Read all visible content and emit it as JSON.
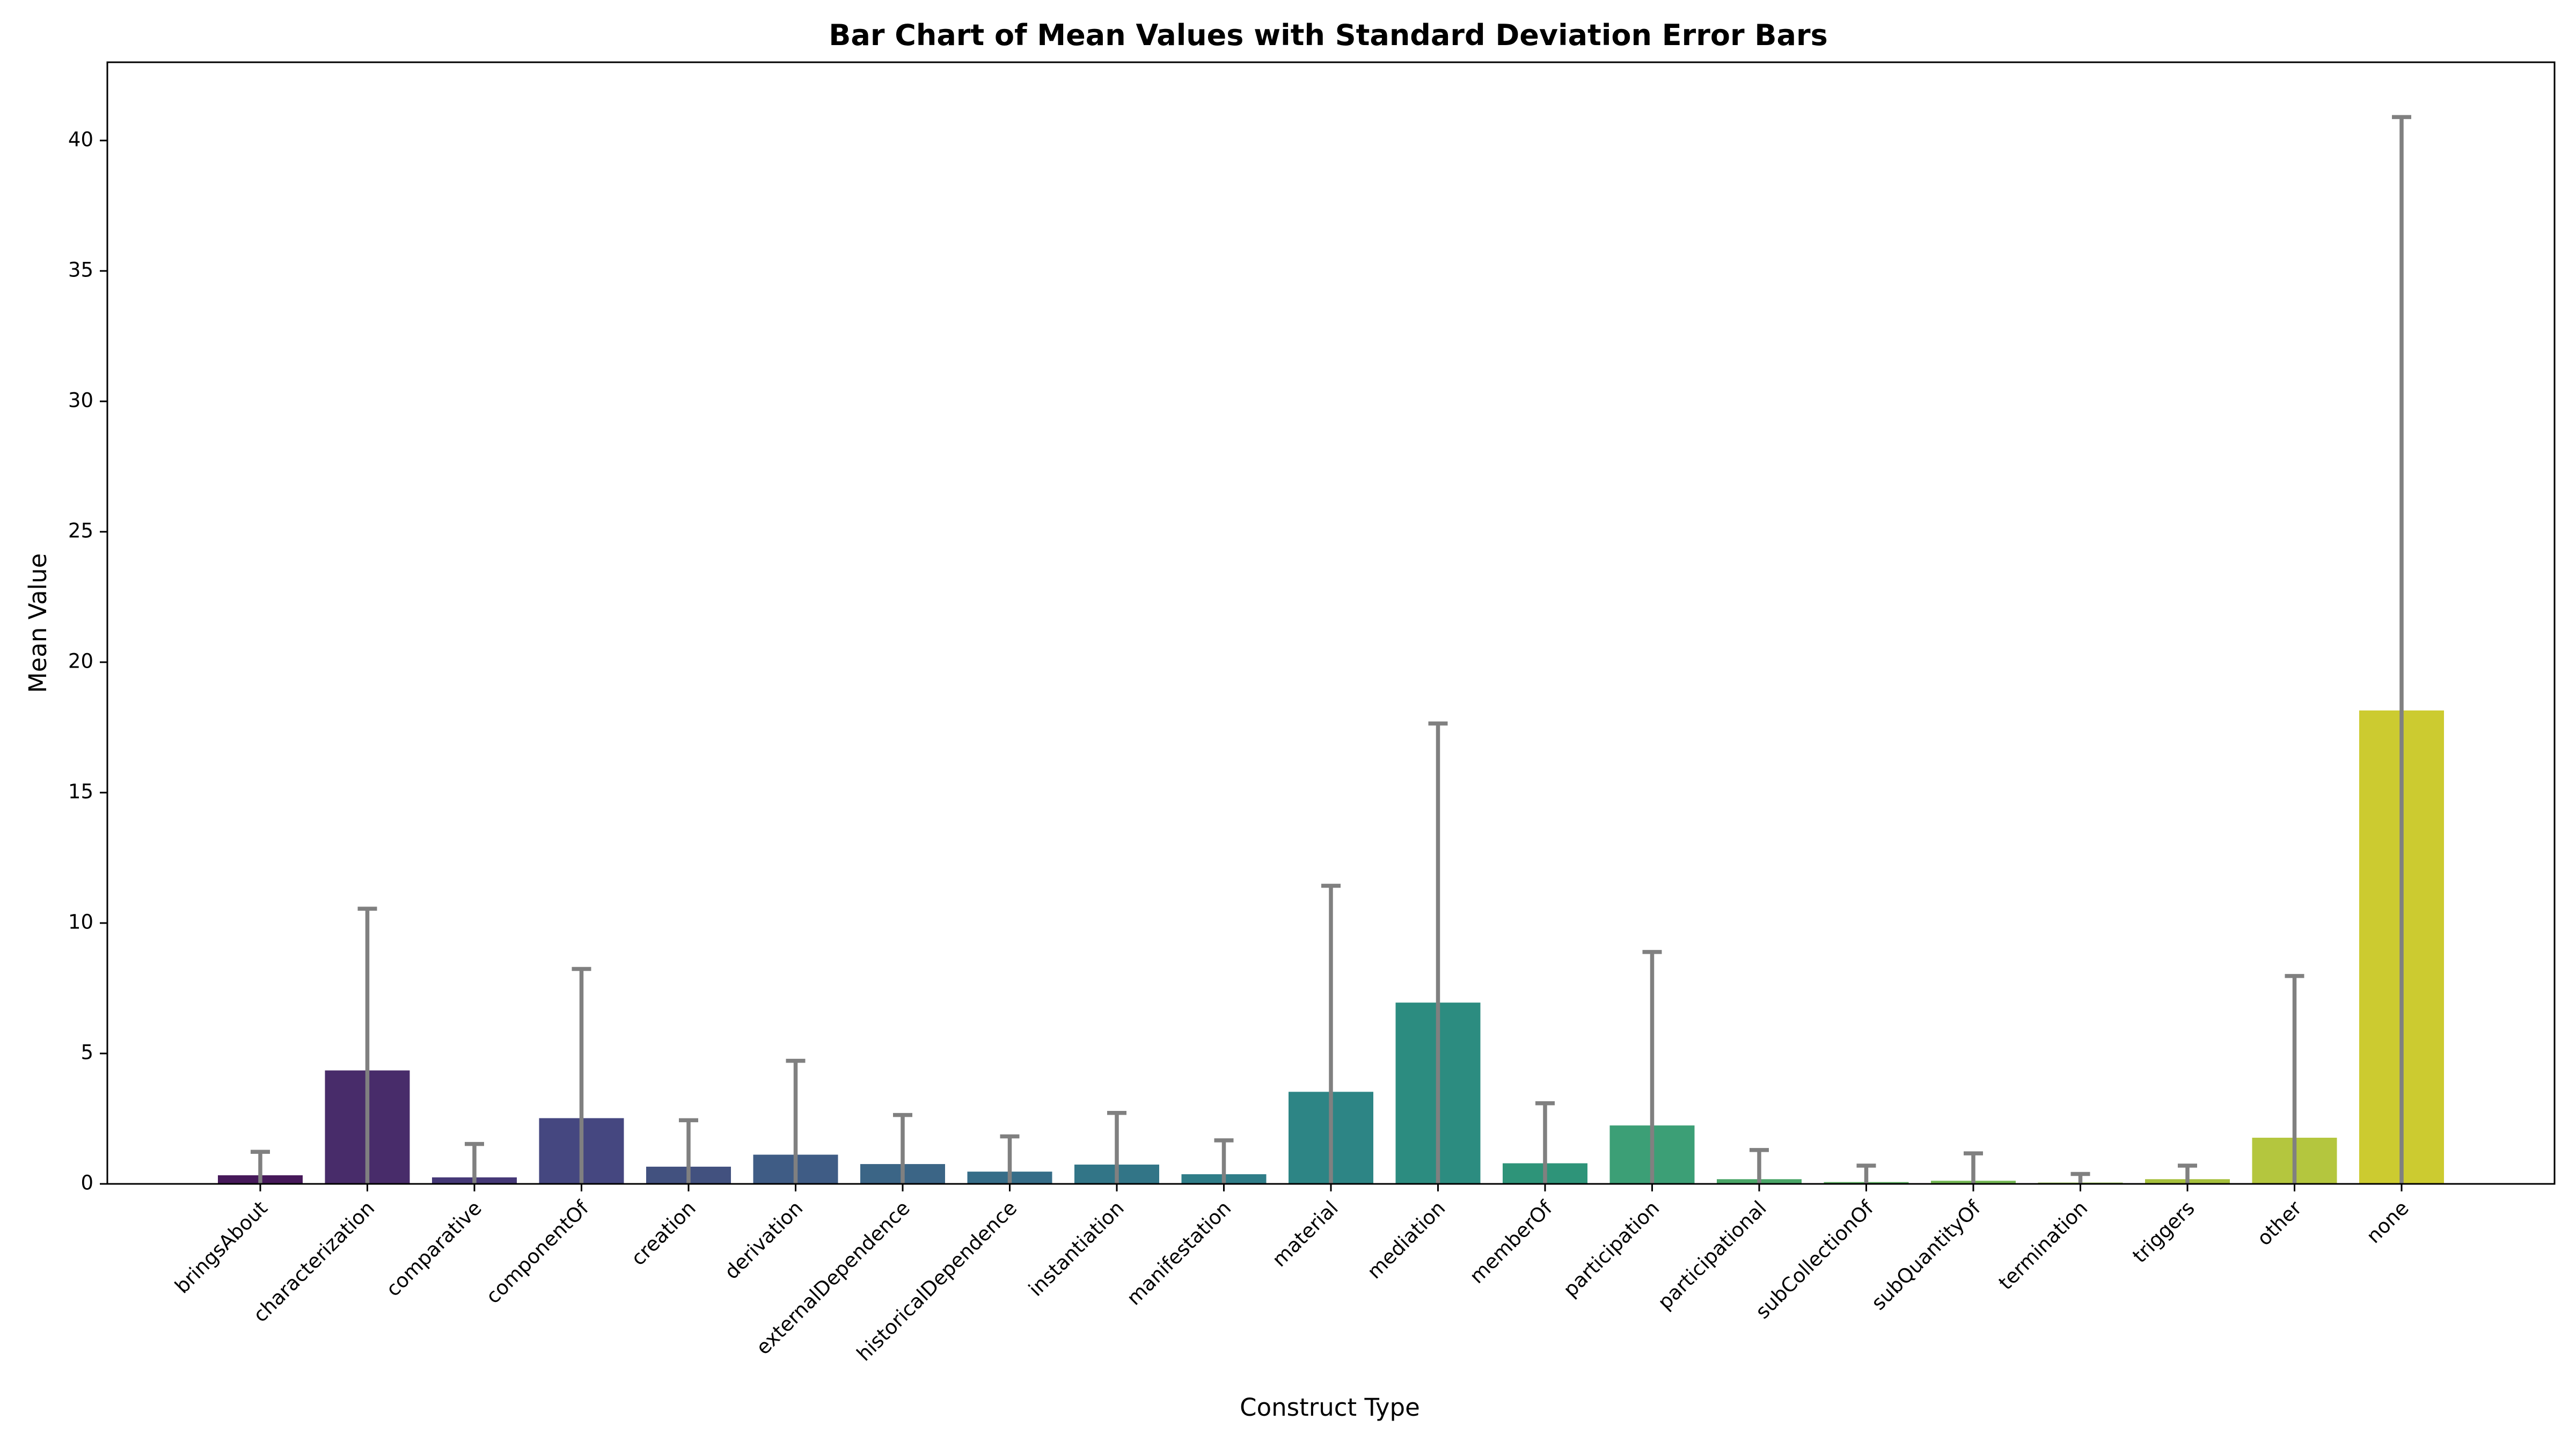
{
  "chart_data": {
    "type": "bar",
    "title": "Bar Chart of Mean Values with Standard Deviation Error Bars",
    "xlabel": "Construct Type",
    "ylabel": "Mean Value",
    "ylim": [
      0,
      43
    ],
    "yticks": [
      0,
      5,
      10,
      15,
      20,
      25,
      30,
      35,
      40
    ],
    "categories": [
      "bringsAbout",
      "characterization",
      "comparative",
      "componentOf",
      "creation",
      "derivation",
      "externalDependence",
      "historicalDependence",
      "instantiation",
      "manifestation",
      "material",
      "mediation",
      "memberOf",
      "participation",
      "participational",
      "subCollectionOf",
      "subQuantityOf",
      "termination",
      "triggers",
      "other",
      "none"
    ],
    "values": [
      0.33,
      4.35,
      0.25,
      2.52,
      0.66,
      1.12,
      0.76,
      0.47,
      0.74,
      0.37,
      3.53,
      6.95,
      0.79,
      2.24,
      0.18,
      0.07,
      0.12,
      0.05,
      0.18,
      1.77,
      18.15
    ],
    "errors": [
      0.9,
      6.2,
      1.28,
      5.72,
      1.78,
      3.6,
      1.88,
      1.35,
      1.98,
      1.3,
      7.9,
      10.7,
      2.3,
      6.65,
      1.12,
      0.63,
      1.05,
      0.33,
      0.52,
      6.2,
      22.75
    ],
    "colors": [
      "#46195a",
      "#482c6a",
      "#453877",
      "#454780",
      "#42517f",
      "#3f5c85",
      "#3b6586",
      "#366d88",
      "#327587",
      "#2f7d88",
      "#2d8585",
      "#2c8c80",
      "#2e9479",
      "#3c9f76",
      "#4aa668",
      "#5bb05e",
      "#74b853",
      "#90bf45",
      "#a6c03c",
      "#b4c63e",
      "#cccb30"
    ],
    "tick_label_colors": {
      "other": "#ff0000",
      "none": "#0000ff"
    },
    "error_bar_color": "#808080",
    "legend": "none",
    "grid": false
  }
}
